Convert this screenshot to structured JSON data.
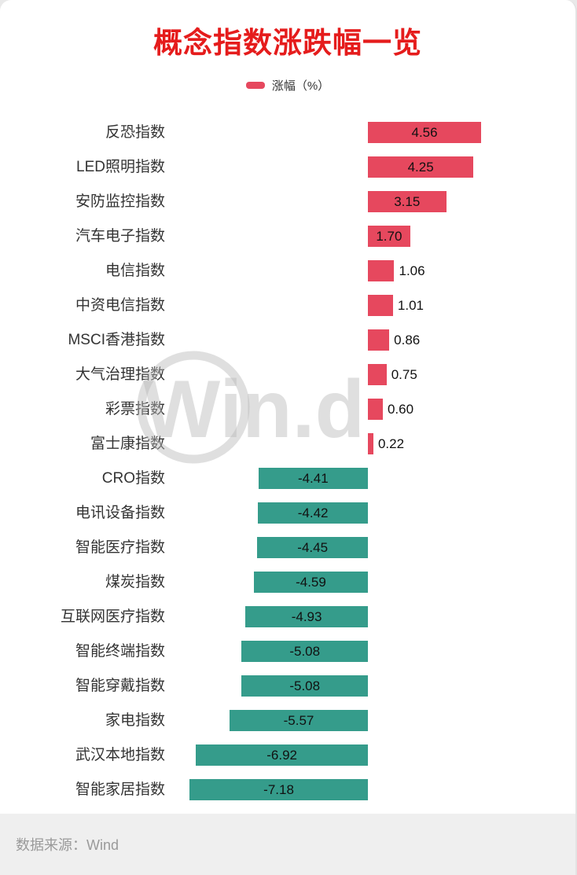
{
  "page": {
    "title": "概念指数涨跌幅一览",
    "footer": "数据来源：Wind",
    "watermark": "Win.d"
  },
  "legend": {
    "label": "涨幅（%）"
  },
  "colors": {
    "title": "#e51c1c",
    "positive": "#e6485e",
    "negative": "#359c8b",
    "footer_bg": "#efefef",
    "footer_text": "#9a9a9a"
  },
  "chart_data": {
    "type": "bar",
    "orientation": "horizontal",
    "title": "概念指数涨跌幅一览",
    "legend_entries": [
      "涨幅（%）"
    ],
    "legend_position": "top-center",
    "grid": false,
    "xlim": [
      -8,
      5
    ],
    "value_unit": "%",
    "categories": [
      "反恐指数",
      "LED照明指数",
      "安防监控指数",
      "汽车电子指数",
      "电信指数",
      "中资电信指数",
      "MSCI香港指数",
      "大气治理指数",
      "彩票指数",
      "富士康指数",
      "CRO指数",
      "电讯设备指数",
      "智能医疗指数",
      "煤炭指数",
      "互联网医疗指数",
      "智能终端指数",
      "智能穿戴指数",
      "家电指数",
      "武汉本地指数",
      "智能家居指数"
    ],
    "values": [
      4.56,
      4.25,
      3.15,
      1.7,
      1.06,
      1.01,
      0.86,
      0.75,
      0.6,
      0.22,
      -4.41,
      -4.42,
      -4.45,
      -4.59,
      -4.93,
      -5.08,
      -5.08,
      -5.57,
      -6.92,
      -7.18
    ]
  }
}
